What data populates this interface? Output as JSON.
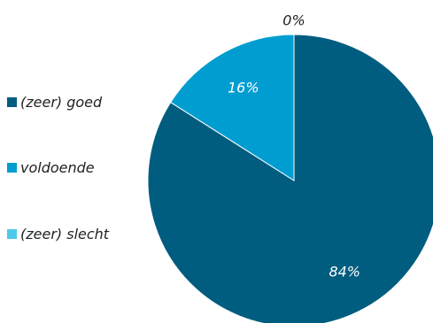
{
  "chart_data": {
    "type": "pie",
    "title": "",
    "legend_position": "left",
    "categories": [
      "(zeer) goed",
      "voldoende",
      "(zeer) slecht"
    ],
    "values": [
      84,
      16,
      0
    ],
    "labels": [
      "84%",
      "16%",
      "0%"
    ],
    "colors": [
      "#005D7F",
      "#009DD1",
      "#4FC8EC"
    ],
    "label_colors": [
      "#ffffff",
      "#ffffff",
      "#222222"
    ]
  }
}
